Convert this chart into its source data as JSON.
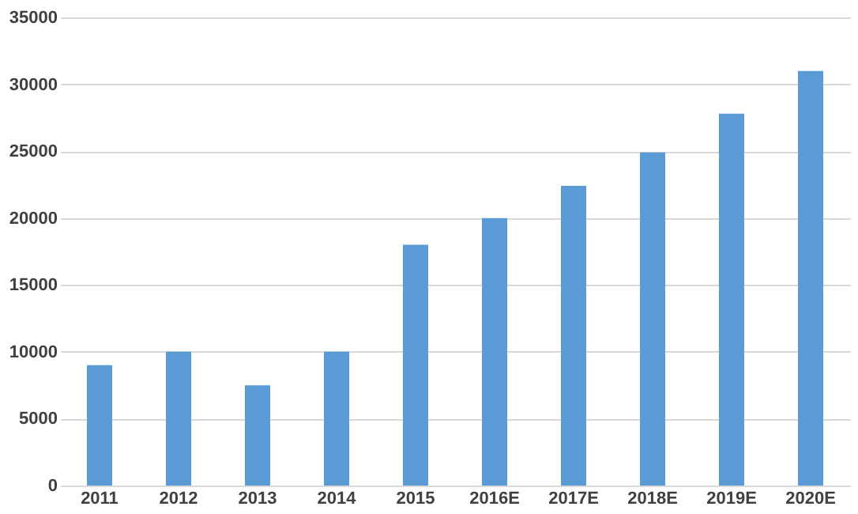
{
  "chart_data": {
    "type": "bar",
    "categories": [
      "2011",
      "2012",
      "2013",
      "2014",
      "2015",
      "2016E",
      "2017E",
      "2018E",
      "2019E",
      "2020E"
    ],
    "values": [
      9000,
      10000,
      7500,
      10000,
      18000,
      20000,
      22400,
      24900,
      27800,
      31000
    ],
    "color": "#5b9bd5",
    "ylim": [
      0,
      35000
    ],
    "yticks": [
      0,
      5000,
      10000,
      15000,
      20000,
      25000,
      30000,
      35000
    ],
    "grid": "y"
  }
}
